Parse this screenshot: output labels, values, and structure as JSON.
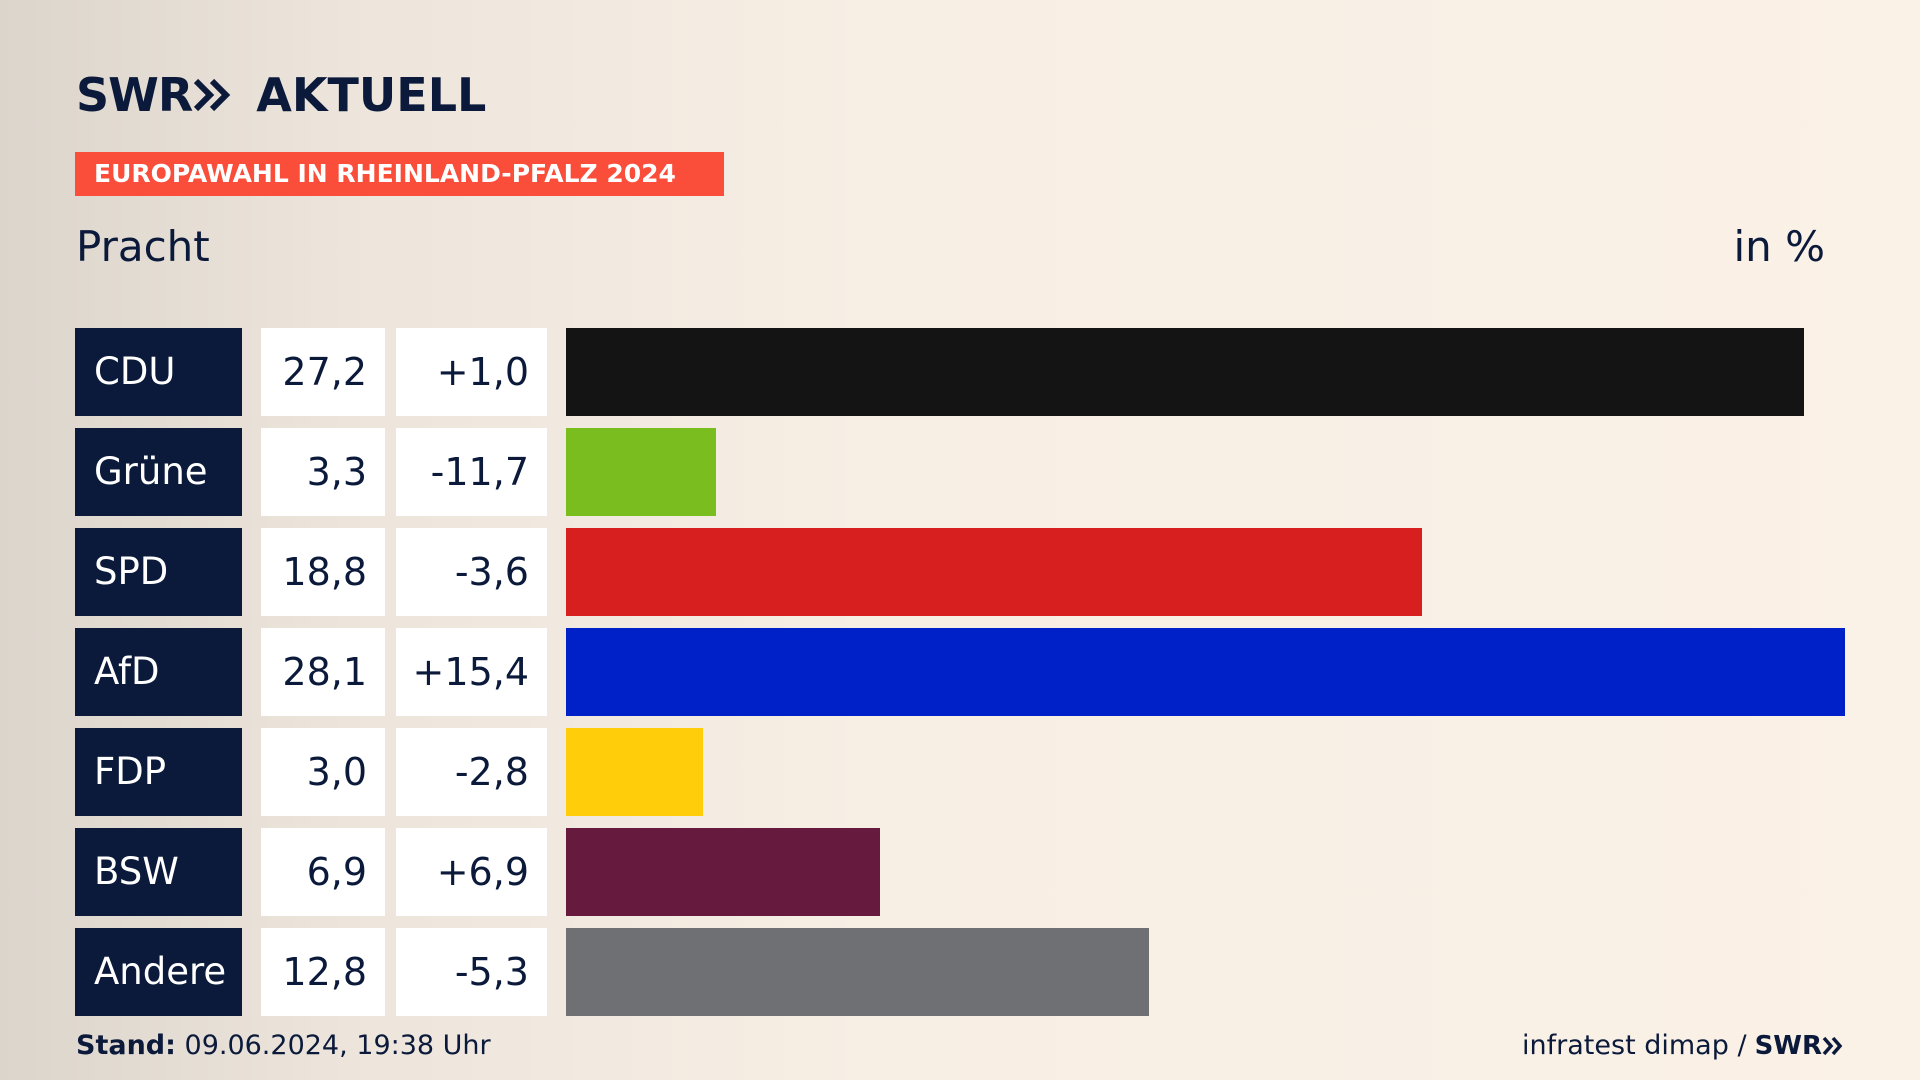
{
  "header": {
    "logo_swr": "SWR",
    "logo_aktuell": "AKTUELL",
    "election_title": "EUROPAWAHL IN RHEINLAND-PFALZ 2024",
    "region": "Pracht",
    "unit": "in %"
  },
  "footer": {
    "stand_label": "Stand:",
    "stand_value": "09.06.2024, 19:38 Uhr",
    "source": "infratest dimap /",
    "source_swr": "SWR"
  },
  "colors": {
    "navy": "#0b1a3a",
    "banner": "#fa4d3a"
  },
  "chart_data": {
    "type": "bar",
    "orientation": "horizontal",
    "unit": "in %",
    "xlim": [
      0,
      28.1
    ],
    "grid": false,
    "categories": [
      "CDU",
      "Grüne",
      "SPD",
      "AfD",
      "FDP",
      "BSW",
      "Andere"
    ],
    "values": [
      27.2,
      3.3,
      18.8,
      28.1,
      3.0,
      6.9,
      12.8
    ],
    "value_labels": [
      "27,2",
      "3,3",
      "18,8",
      "28,1",
      "3,0",
      "6,9",
      "12,8"
    ],
    "diff_labels": [
      "+1,0",
      "-11,7",
      "-3,6",
      "+15,4",
      "-2,8",
      "+6,9",
      "-5,3"
    ],
    "colors": [
      "#141414",
      "#7abd1e",
      "#d71f1f",
      "#0021c8",
      "#ffcd0a",
      "#661a3e",
      "#6f7073"
    ]
  }
}
